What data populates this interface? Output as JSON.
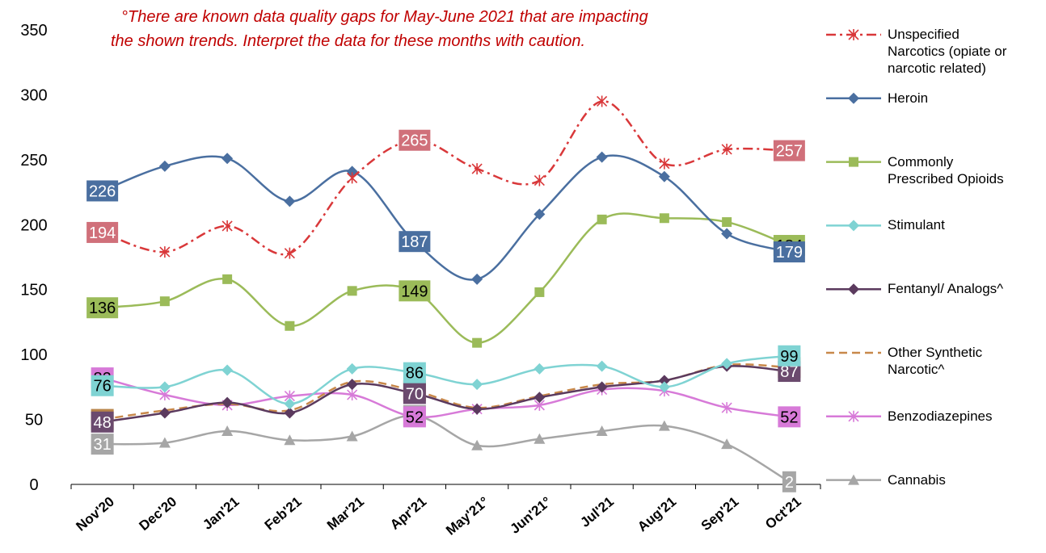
{
  "chart_data": {
    "type": "line",
    "annotation": [
      "°There are known data quality gaps for May-June 2021 that are impacting",
      "the shown trends. Interpret the data for these months with caution."
    ],
    "annotation_color": "#c00000",
    "categories": [
      "Nov'20",
      "Dec'20",
      "Jan'21",
      "Feb'21",
      "Mar'21",
      "Apr'21",
      "May'21°",
      "Jun'21°",
      "Jul'21",
      "Aug'21",
      "Sep'21",
      "Oct'21"
    ],
    "ylim": [
      0,
      350
    ],
    "yticks": [
      0,
      50,
      100,
      150,
      200,
      250,
      300,
      350
    ],
    "grid": false,
    "smooth": true,
    "data_labels_at": [
      0,
      5,
      11
    ],
    "legend": "right",
    "series": [
      {
        "name": "Unspecified Narcotics (opiate or narcotic related)",
        "color": "#d9383a",
        "label_color": "#d0707a",
        "label_text_color": "#ffffff",
        "dash": "dashdot",
        "marker": "star",
        "values": [
          194,
          179,
          199,
          178,
          236,
          265,
          243,
          234,
          295,
          247,
          258,
          257
        ]
      },
      {
        "name": "Heroin",
        "color": "#4a6fa0",
        "label_color": "#4a6fa0",
        "label_text_color": "#ffffff",
        "dash": "solid",
        "marker": "diamond",
        "values": [
          226,
          245,
          251,
          218,
          241,
          187,
          158,
          208,
          252,
          237,
          193,
          179
        ]
      },
      {
        "name": "Commonly Prescribed Opioids",
        "color": "#9bbb59",
        "label_color": "#9bbb59",
        "label_text_color": "#000000",
        "dash": "solid",
        "marker": "square",
        "values": [
          136,
          141,
          158,
          122,
          149,
          149,
          109,
          148,
          204,
          205,
          202,
          184
        ]
      },
      {
        "name": "Stimulant",
        "color": "#7fd3d3",
        "label_color": "#7fd3d3",
        "label_text_color": "#000000",
        "dash": "solid",
        "marker": "diamond",
        "values": [
          76,
          75,
          88,
          62,
          89,
          86,
          77,
          89,
          91,
          75,
          93,
          99
        ]
      },
      {
        "name": "Fentanyl/ Analogs^",
        "color": "#5b3a5e",
        "label_color": "#6b4a6e",
        "label_text_color": "#ffffff",
        "dash": "solid",
        "marker": "diamond",
        "values": [
          48,
          55,
          63,
          55,
          77,
          70,
          58,
          67,
          75,
          80,
          91,
          87
        ]
      },
      {
        "name": "Other Synthetic Narcotic^",
        "color": "#c8884a",
        "label_color": "#b8844a",
        "label_text_color": "#ffffff",
        "dash": "dash",
        "marker": "none",
        "values": [
          50,
          57,
          62,
          57,
          79,
          72,
          59,
          68,
          77,
          80,
          92,
          90
        ]
      },
      {
        "name": "Benzodiazepines",
        "color": "#d77ad8",
        "label_color": "#d77ad8",
        "label_text_color": "#000000",
        "dash": "solid",
        "marker": "star",
        "values": [
          82,
          69,
          61,
          68,
          69,
          52,
          58,
          61,
          73,
          72,
          59,
          52
        ]
      },
      {
        "name": "Cannabis",
        "color": "#a6a6a6",
        "label_color": "#a6a6a6",
        "label_text_color": "#ffffff",
        "dash": "solid",
        "marker": "triangle",
        "values": [
          31,
          32,
          41,
          34,
          37,
          53,
          30,
          35,
          41,
          45,
          31,
          2
        ]
      }
    ]
  }
}
